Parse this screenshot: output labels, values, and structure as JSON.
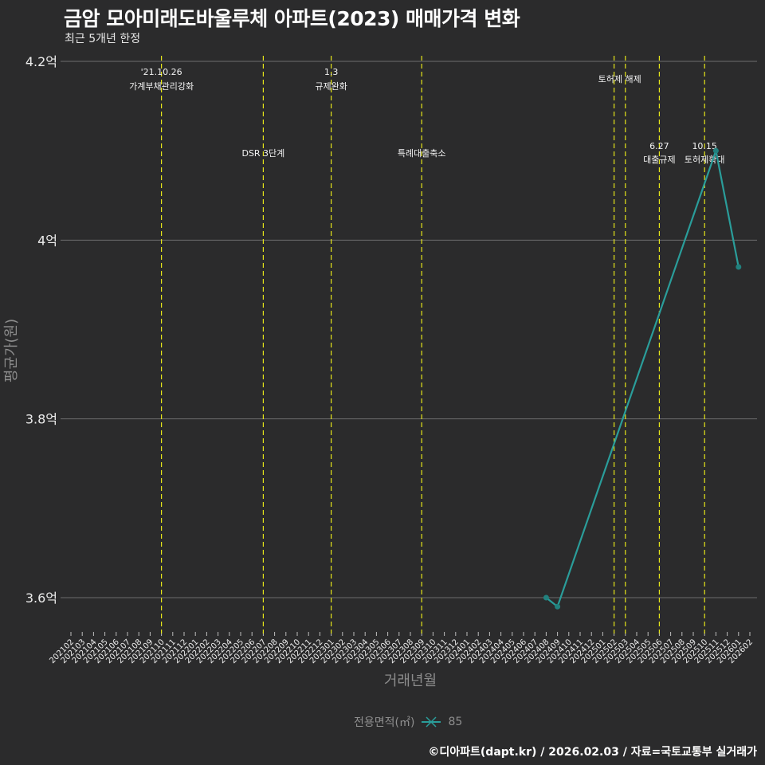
{
  "header": {
    "title": "금암 모아미래도바울루체 아파트(2023) 매매가격 변화",
    "subtitle": "최근 5개년 한정"
  },
  "legend": {
    "title": "전용면적(㎡)",
    "items": [
      {
        "label": "85",
        "color": "#2a9d9a"
      }
    ]
  },
  "caption": "©디아파트(dapt.kr) / 2026.02.03 / 자료=국토교통부 실거래가",
  "colors": {
    "background": "#2b2b2c",
    "grid": "#6e6e6e",
    "event_line": "#e6e619",
    "series": "#2a9d9a"
  },
  "chart_data": {
    "type": "line",
    "title": "금암 모아미래도바울루체 아파트(2023) 매매가격 변화",
    "subtitle": "최근 5개년 한정",
    "xlabel": "거래년월",
    "ylabel": "평균가(원)",
    "y_ticks": [
      {
        "value": 3.6,
        "label": "3.6억"
      },
      {
        "value": 3.8,
        "label": "3.8억"
      },
      {
        "value": 4.0,
        "label": "4억"
      },
      {
        "value": 4.2,
        "label": "4.2억"
      }
    ],
    "ylim": [
      3.57,
      4.2
    ],
    "grid": true,
    "legend_position": "bottom",
    "x_categories": [
      "202102",
      "202103",
      "202104",
      "202105",
      "202106",
      "202107",
      "202108",
      "202109",
      "202110",
      "202111",
      "202112",
      "202201",
      "202202",
      "202203",
      "202204",
      "202205",
      "202206",
      "202207",
      "202208",
      "202209",
      "202210",
      "202211",
      "202212",
      "202301",
      "202302",
      "202303",
      "202304",
      "202305",
      "202306",
      "202307",
      "202308",
      "202309",
      "202310",
      "202311",
      "202312",
      "202401",
      "202402",
      "202403",
      "202404",
      "202405",
      "202406",
      "202407",
      "202408",
      "202409",
      "202410",
      "202411",
      "202412",
      "202501",
      "202502",
      "202503",
      "202504",
      "202505",
      "202506",
      "202507",
      "202508",
      "202509",
      "202510",
      "202511",
      "202512",
      "202601",
      "202602"
    ],
    "series": [
      {
        "name": "85",
        "points": [
          {
            "x": "202408",
            "y": 3.6
          },
          {
            "x": "202409",
            "y": 3.59
          },
          {
            "x": "202511",
            "y": 4.1
          },
          {
            "x": "202601",
            "y": 3.97
          }
        ]
      }
    ],
    "events": [
      {
        "x": "202110",
        "label_top": "'21.10.26",
        "label": "가계부채관리강화",
        "row": 1
      },
      {
        "x": "202207",
        "label_top": "",
        "label": "DSR 3단계",
        "row": 2
      },
      {
        "x": "202301",
        "label_top": "1.3",
        "label": "규제완화",
        "row": 1
      },
      {
        "x": "202309",
        "label_top": "",
        "label": "특례대출축소",
        "row": 2
      },
      {
        "x": "202502",
        "label_top": "",
        "label": "토허제 해제",
        "row": 1,
        "span_to": "202503"
      },
      {
        "x": "202503",
        "label_top": "",
        "label": "",
        "row": 1
      },
      {
        "x": "202506",
        "label_top": "6.27",
        "label": "대출규제",
        "row": 2
      },
      {
        "x": "202510",
        "label_top": "10.15",
        "label": "토허제확대",
        "row": 2
      }
    ]
  }
}
